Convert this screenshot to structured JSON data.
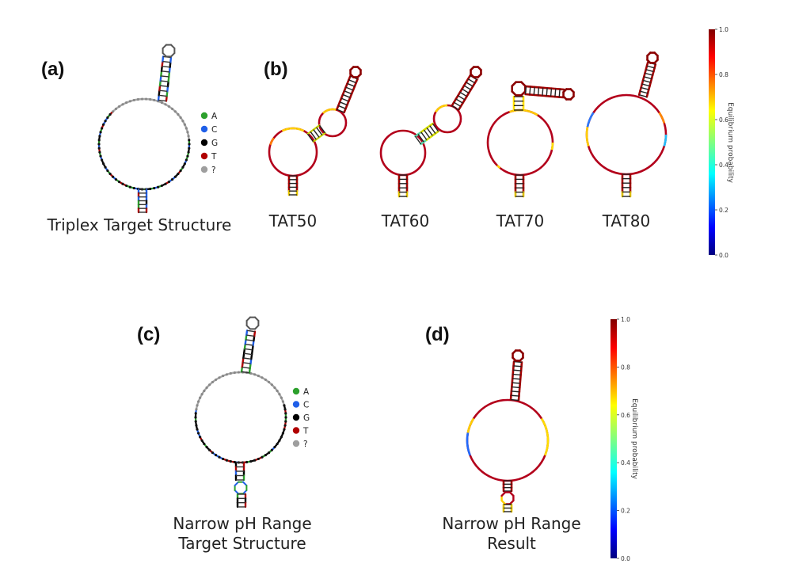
{
  "panels": {
    "a": {
      "label": "(a)",
      "caption": "Triplex Target Structure"
    },
    "b": {
      "label": "(b)",
      "captions": [
        "TAT50",
        "TAT60",
        "TAT70",
        "TAT80"
      ]
    },
    "c": {
      "label": "(c)",
      "caption_line1": "Narrow pH Range",
      "caption_line2": "Target Structure"
    },
    "d": {
      "label": "(d)",
      "caption_line1": "Narrow pH Range",
      "caption_line2": "Result"
    }
  },
  "legend": {
    "items": [
      {
        "label": "A",
        "color": "#2ca02c"
      },
      {
        "label": "C",
        "color": "#1f5fe8"
      },
      {
        "label": "G",
        "color": "#000000"
      },
      {
        "label": "T",
        "color": "#b00000"
      },
      {
        "label": "?",
        "color": "#9e9e9e"
      }
    ]
  },
  "colorbar": {
    "title": "Equilibrium probability",
    "ticks": [
      "1.0",
      "0.8",
      "0.6",
      "0.4",
      "0.2",
      "0.0"
    ],
    "colormap": [
      "#800000",
      "#ff0000",
      "#ff8000",
      "#ffff00",
      "#80ff80",
      "#00ffff",
      "#0080ff",
      "#0000ff",
      "#000080"
    ]
  }
}
